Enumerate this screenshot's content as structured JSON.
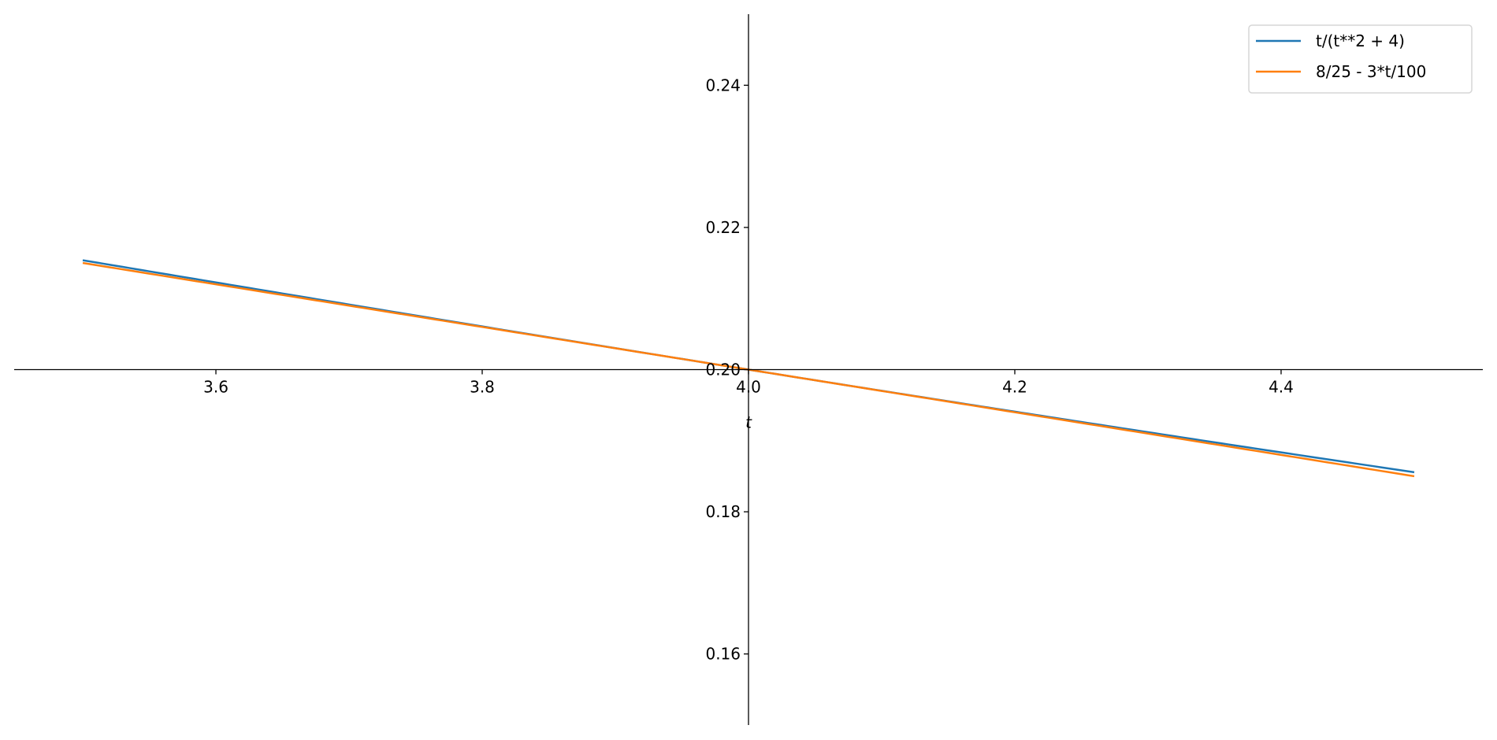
{
  "chart_data": {
    "type": "line",
    "title": "",
    "xlabel": "t",
    "ylabel": "",
    "xlim": [
      3.4485,
      4.5515
    ],
    "ylim": [
      0.15,
      0.25
    ],
    "x_ticks": [
      "3.6",
      "3.8",
      "4.0",
      "4.2",
      "4.4"
    ],
    "y_ticks": [
      "0.16",
      "0.18",
      "0.20",
      "0.22",
      "0.24"
    ],
    "grid": false,
    "axes_through_origin_at": {
      "x": 4.0,
      "y": 0.2
    },
    "legend": {
      "position": "top-right"
    },
    "x_range": [
      3.5,
      4.5
    ],
    "series": [
      {
        "name": "t/(t**2 + 4)",
        "color": "#1f77b4",
        "function": "t/(t**2 + 4)"
      },
      {
        "name": "8/25 - 3*t/100",
        "color": "#ff7f0e",
        "function": "8/25 - 3*t/100"
      }
    ]
  }
}
